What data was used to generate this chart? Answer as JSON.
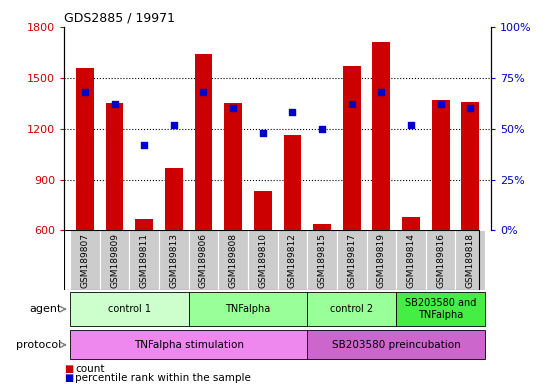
{
  "title": "GDS2885 / 19971",
  "samples": [
    "GSM189807",
    "GSM189809",
    "GSM189811",
    "GSM189813",
    "GSM189806",
    "GSM189808",
    "GSM189810",
    "GSM189812",
    "GSM189815",
    "GSM189817",
    "GSM189819",
    "GSM189814",
    "GSM189816",
    "GSM189818"
  ],
  "counts": [
    1560,
    1350,
    670,
    970,
    1640,
    1350,
    830,
    1160,
    640,
    1570,
    1710,
    680,
    1370,
    1360
  ],
  "percentiles": [
    68,
    62,
    42,
    52,
    68,
    60,
    48,
    58,
    50,
    62,
    68,
    52,
    62,
    60
  ],
  "ylim_left": [
    600,
    1800
  ],
  "ylim_right": [
    0,
    100
  ],
  "yticks_left": [
    600,
    900,
    1200,
    1500,
    1800
  ],
  "yticks_right": [
    0,
    25,
    50,
    75,
    100
  ],
  "bar_color": "#cc0000",
  "dot_color": "#0000cc",
  "agent_groups": [
    {
      "label": "control 1",
      "start": 0,
      "end": 4,
      "color": "#ccffcc"
    },
    {
      "label": "TNFalpha",
      "start": 4,
      "end": 8,
      "color": "#99ff99"
    },
    {
      "label": "control 2",
      "start": 8,
      "end": 11,
      "color": "#99ff99"
    },
    {
      "label": "SB203580 and\nTNFalpha",
      "start": 11,
      "end": 14,
      "color": "#44ee44"
    }
  ],
  "protocol_groups": [
    {
      "label": "TNFalpha stimulation",
      "start": 0,
      "end": 8,
      "color": "#ee88ee"
    },
    {
      "label": "SB203580 preincubation",
      "start": 8,
      "end": 14,
      "color": "#cc66cc"
    }
  ],
  "legend_count_color": "#cc0000",
  "legend_percentile_color": "#0000cc",
  "ylabel_left_color": "#cc0000",
  "ylabel_right_color": "#0000cc",
  "sample_bg_color": "#cccccc",
  "grid_yticks": [
    900,
    1200,
    1500
  ]
}
